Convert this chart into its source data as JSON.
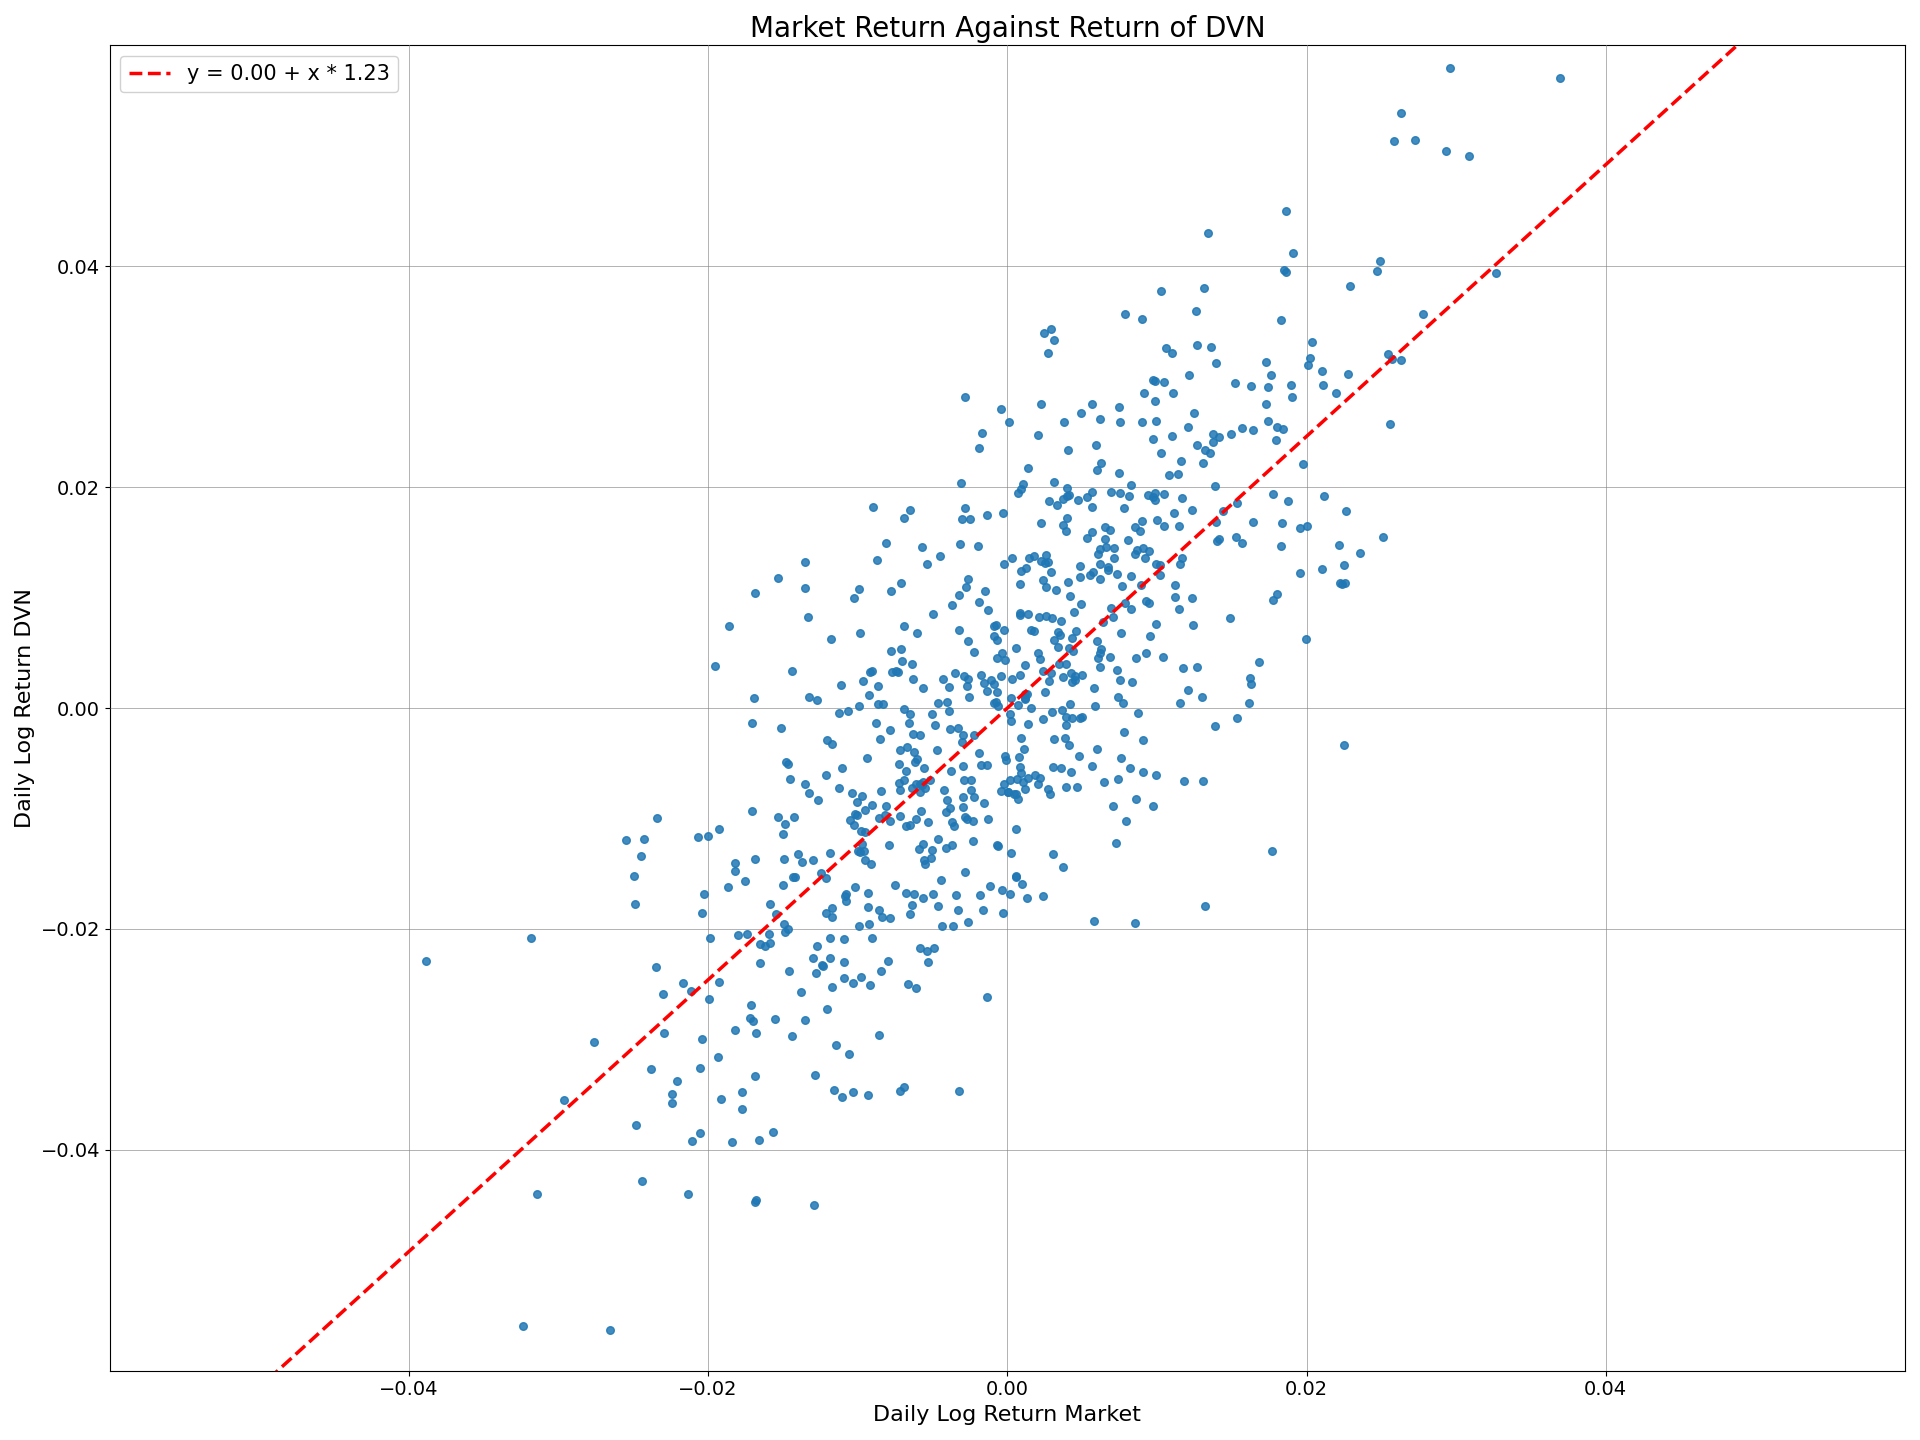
{
  "title": "Market Return Against Return of DVN",
  "xlabel": "Daily Log Return Market",
  "ylabel": "Daily Log Return DVN",
  "intercept": 0.0,
  "slope": 1.23,
  "legend_label": "y = 0.00 + x * 1.23",
  "scatter_color": "#1f77b4",
  "line_color": "#ff0000",
  "xlim": [
    -0.06,
    0.06
  ],
  "ylim": [
    -0.06,
    0.06
  ],
  "xticks": [
    -0.04,
    -0.02,
    0.0,
    0.02,
    0.04
  ],
  "yticks": [
    -0.04,
    -0.02,
    0.0,
    0.02,
    0.04
  ],
  "dot_size": 30,
  "alpha": 0.85,
  "title_fontsize": 20,
  "label_fontsize": 16,
  "tick_fontsize": 14,
  "legend_fontsize": 15,
  "figsize": [
    19.2,
    14.4
  ],
  "dpi": 100
}
